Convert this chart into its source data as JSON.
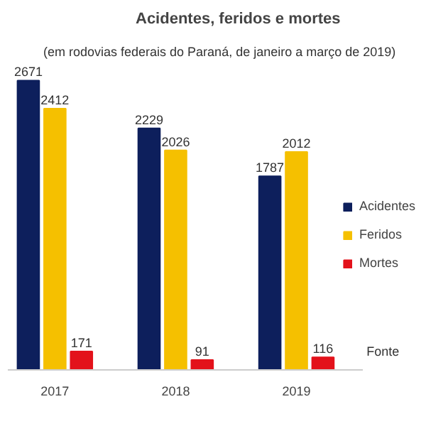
{
  "chart_data": {
    "type": "bar",
    "title": "Acidentes, feridos e mortes",
    "subtitle": "(em rodovias federais do Paraná, de janeiro a março de 2019)",
    "categories": [
      "2017",
      "2018",
      "2019"
    ],
    "series": [
      {
        "name": "Acidentes",
        "color": "#0d1f5c",
        "values": [
          2671,
          2229,
          1787
        ]
      },
      {
        "name": "Feridos",
        "color": "#f5c000",
        "values": [
          2412,
          2026,
          2012
        ]
      },
      {
        "name": "Mortes",
        "color": "#e3121b",
        "values": [
          171,
          91,
          116
        ]
      }
    ],
    "tick_labels": "x",
    "data_labels": true,
    "grid": false,
    "legend": "right",
    "annotations": [
      "Fonte"
    ]
  }
}
